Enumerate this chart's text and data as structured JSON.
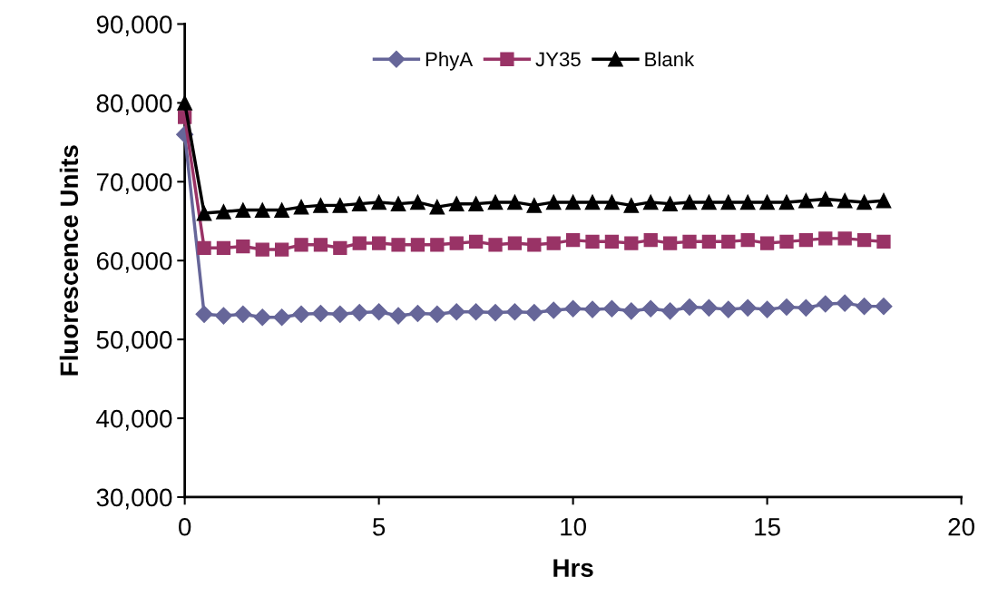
{
  "chart_data": {
    "type": "line",
    "xlabel": "Hrs",
    "ylabel": "Fluorescence Units",
    "x": [
      0,
      0.5,
      1,
      1.5,
      2,
      2.5,
      3,
      3.5,
      4,
      4.5,
      5,
      5.5,
      6,
      6.5,
      7,
      7.5,
      8,
      8.5,
      9,
      9.5,
      10,
      10.5,
      11,
      11.5,
      12,
      12.5,
      13,
      13.5,
      14,
      14.5,
      15,
      15.5,
      16,
      16.5,
      17,
      17.5,
      18
    ],
    "series": [
      {
        "name": "PhyA",
        "color": "#666699",
        "marker": "diamond",
        "values": [
          76000,
          53200,
          53000,
          53200,
          52800,
          52800,
          53200,
          53300,
          53200,
          53400,
          53500,
          53000,
          53300,
          53200,
          53500,
          53500,
          53400,
          53500,
          53400,
          53700,
          53900,
          53800,
          53900,
          53600,
          53900,
          53600,
          54100,
          54000,
          53800,
          54000,
          53800,
          54100,
          54000,
          54500,
          54600,
          54200,
          54200
        ]
      },
      {
        "name": "JY35",
        "color": "#993366",
        "marker": "square",
        "values": [
          78200,
          61600,
          61600,
          61800,
          61400,
          61400,
          62000,
          62000,
          61600,
          62200,
          62200,
          62000,
          62000,
          62000,
          62200,
          62400,
          62000,
          62200,
          62000,
          62200,
          62600,
          62400,
          62400,
          62200,
          62600,
          62200,
          62400,
          62400,
          62400,
          62600,
          62200,
          62400,
          62600,
          62800,
          62800,
          62600,
          62400
        ]
      },
      {
        "name": "Blank",
        "color": "#000000",
        "marker": "triangle",
        "values": [
          80000,
          66000,
          66200,
          66400,
          66400,
          66400,
          66800,
          67000,
          67000,
          67200,
          67400,
          67200,
          67400,
          66800,
          67200,
          67200,
          67400,
          67400,
          67000,
          67400,
          67400,
          67400,
          67400,
          67000,
          67400,
          67200,
          67400,
          67400,
          67400,
          67400,
          67400,
          67400,
          67600,
          67800,
          67600,
          67400,
          67600
        ]
      }
    ],
    "xlim": [
      0,
      20
    ],
    "xticks": [
      0,
      5,
      10,
      15,
      20
    ],
    "ylim": [
      30000,
      90000
    ],
    "yticks": [
      {
        "value": 30000,
        "label": "30,000"
      },
      {
        "value": 40000,
        "label": "40,000"
      },
      {
        "value": 50000,
        "label": "50,000"
      },
      {
        "value": 60000,
        "label": "60,000"
      },
      {
        "value": 70000,
        "label": "70,000"
      },
      {
        "value": 80000,
        "label": "80,000"
      },
      {
        "value": 90000,
        "label": "90,000"
      }
    ],
    "grid": false,
    "legend": "top",
    "line_style": "solid"
  }
}
